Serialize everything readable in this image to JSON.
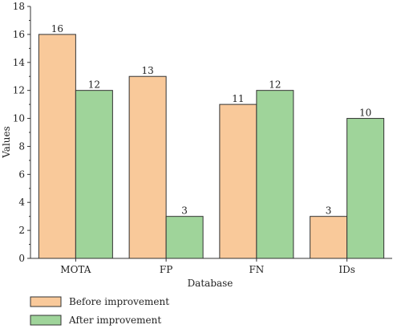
{
  "chart_data": {
    "type": "bar",
    "categories": [
      "MOTA",
      "FP",
      "FN",
      "IDs"
    ],
    "series": [
      {
        "name": "Before improvement",
        "values": [
          16,
          13,
          11,
          3
        ],
        "color": "#f9c99a"
      },
      {
        "name": "After improvement",
        "values": [
          12,
          3,
          12,
          10
        ],
        "color": "#9fd49a"
      }
    ],
    "xlabel": "Database",
    "ylabel": "Values",
    "ylim": [
      0,
      18
    ],
    "yticks": [
      0,
      2,
      4,
      6,
      8,
      10,
      12,
      14,
      16,
      18
    ],
    "grid": false,
    "legend_position": "bottom-left",
    "bar_edge_color": "#333333"
  }
}
